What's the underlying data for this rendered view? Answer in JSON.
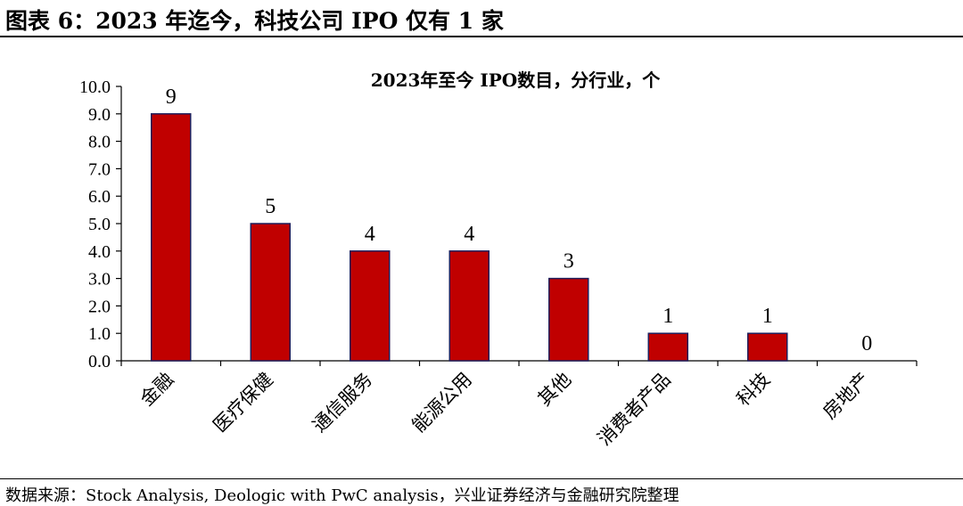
{
  "figure": {
    "title": "图表 6：2023 年迄今，科技公司 IPO 仅有 1 家",
    "source": "数据来源：Stock Analysis, Deologic with PwC analysis，兴业证券经济与金融研究院整理"
  },
  "chart_data": {
    "type": "bar",
    "title": "2023年至今 IPO数目，分行业，个",
    "categories": [
      "金融",
      "医疗保健",
      "通信服务",
      "能源公用",
      "其他",
      "消费者产品",
      "科技",
      "房地产"
    ],
    "values": [
      9,
      5,
      4,
      4,
      3,
      1,
      1,
      0
    ],
    "data_labels": [
      "9",
      "5",
      "4",
      "4",
      "3",
      "1",
      "1",
      "0"
    ],
    "ylim": [
      0,
      10
    ],
    "yticks": [
      "0.0",
      "1.0",
      "2.0",
      "3.0",
      "4.0",
      "5.0",
      "6.0",
      "7.0",
      "8.0",
      "9.0",
      "10.0"
    ],
    "xlabel": "",
    "ylabel": "",
    "grid": false,
    "bar_color": "#C00000",
    "bar_edge_color": "#1F1F5C"
  }
}
